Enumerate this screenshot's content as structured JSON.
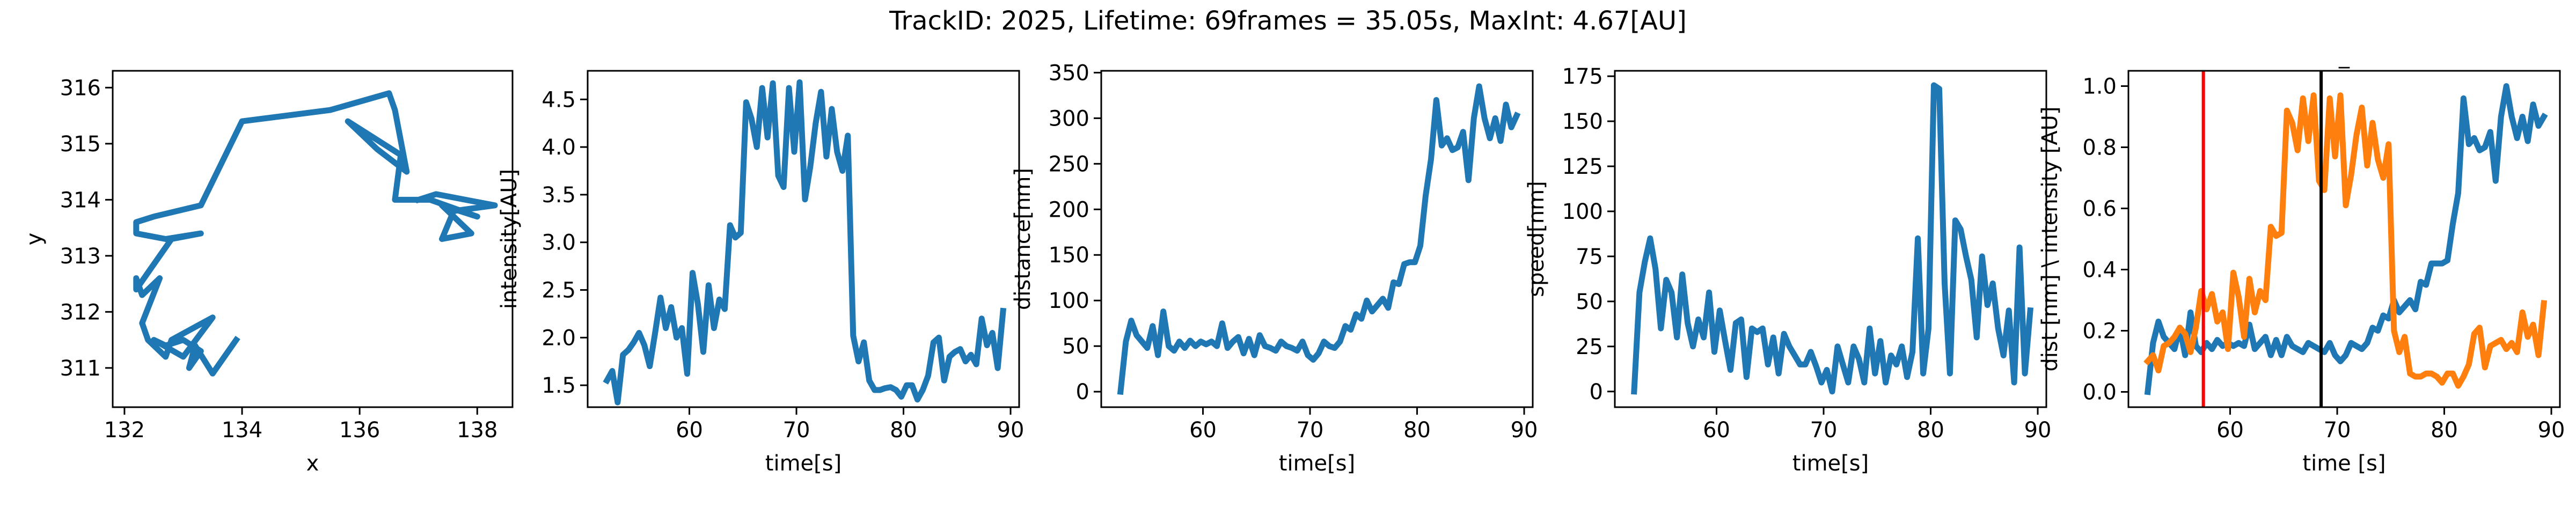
{
  "suptitle": "TrackID: 2025, Lifetime: 69frames = 35.05s, MaxInt: 4.67[AU]",
  "chart_data": [
    {
      "type": "line",
      "xlabel": "x",
      "ylabel": "y",
      "xlim": [
        131.8,
        138.6
      ],
      "ylim": [
        310.3,
        316.3
      ],
      "xticks": [
        132,
        134,
        136,
        138
      ],
      "xtick_labels": [
        "132",
        "134",
        "136",
        "138"
      ],
      "yticks": [
        311,
        312,
        313,
        314,
        315,
        316
      ],
      "ytick_labels": [
        "311",
        "312",
        "313",
        "314",
        "315",
        "316"
      ],
      "grid": false,
      "series": [
        {
          "color": "#1f77b4",
          "x": [
            133.9,
            133.5,
            133.2,
            133.1,
            133.3,
            133.0,
            132.7,
            132.5,
            133.0,
            133.5,
            132.8,
            132.7,
            132.4,
            132.3,
            132.6,
            132.3,
            132.2,
            132.2,
            132.4,
            132.8,
            133.3,
            132.7,
            132.2,
            132.2,
            132.5,
            133.3,
            134.0,
            135.5,
            136.5,
            136.6,
            136.8,
            136.3,
            135.8,
            136.7,
            136.6,
            137.2,
            138.0,
            137.4,
            137.9,
            137.4,
            137.6,
            138.3,
            137.3,
            137.0
          ],
          "y": [
            311.5,
            310.9,
            311.4,
            311.0,
            311.3,
            311.5,
            311.4,
            311.5,
            311.2,
            311.9,
            311.5,
            311.2,
            311.5,
            311.8,
            312.6,
            312.3,
            312.6,
            312.4,
            312.7,
            313.3,
            313.4,
            313.3,
            313.4,
            313.6,
            313.7,
            313.9,
            315.4,
            315.6,
            315.9,
            315.6,
            314.5,
            314.9,
            315.4,
            314.8,
            314.0,
            314.0,
            313.7,
            313.9,
            313.4,
            313.3,
            313.8,
            313.9,
            314.1,
            314.0
          ]
        }
      ]
    },
    {
      "type": "line",
      "xlabel": "time[s]",
      "ylabel": "intensity[AU]",
      "xlim": [
        50.5,
        90.8
      ],
      "ylim": [
        1.27,
        4.8
      ],
      "xticks": [
        60,
        70,
        80,
        90
      ],
      "xtick_labels": [
        "60",
        "70",
        "80",
        "90"
      ],
      "yticks": [
        1.5,
        2.0,
        2.5,
        3.0,
        3.5,
        4.0,
        4.5
      ],
      "ytick_labels": [
        "1.5",
        "2.0",
        "2.5",
        "3.0",
        "3.5",
        "4.0",
        "4.5"
      ],
      "grid": false,
      "series": [
        {
          "color": "#1f77b4",
          "x": [
            52.3,
            52.8,
            53.3,
            53.8,
            54.3,
            54.8,
            55.3,
            55.8,
            56.3,
            56.8,
            57.3,
            57.8,
            58.3,
            58.8,
            59.3,
            59.8,
            60.3,
            60.8,
            61.3,
            61.8,
            62.3,
            62.8,
            63.3,
            63.8,
            64.3,
            64.8,
            65.3,
            65.8,
            66.3,
            66.8,
            67.3,
            67.8,
            68.3,
            68.8,
            69.3,
            69.8,
            70.3,
            70.8,
            71.3,
            71.8,
            72.3,
            72.8,
            73.3,
            73.8,
            74.3,
            74.8,
            75.3,
            75.8,
            76.3,
            76.8,
            77.3,
            77.8,
            78.3,
            78.8,
            79.3,
            79.8,
            80.3,
            80.8,
            81.3,
            81.8,
            82.3,
            82.8,
            83.3,
            83.8,
            84.3,
            84.8,
            85.3,
            85.8,
            86.3,
            86.8,
            87.3,
            87.8,
            88.3,
            88.8,
            89.3
          ],
          "values": [
            1.55,
            1.65,
            1.32,
            1.82,
            1.87,
            1.95,
            2.05,
            1.92,
            1.7,
            2.05,
            2.42,
            2.1,
            2.32,
            2.0,
            2.1,
            1.62,
            2.68,
            2.35,
            1.85,
            2.55,
            2.1,
            2.4,
            2.3,
            3.18,
            3.05,
            3.1,
            4.47,
            4.3,
            4.0,
            4.62,
            4.1,
            4.67,
            3.7,
            3.58,
            4.62,
            3.95,
            4.68,
            3.45,
            3.8,
            4.25,
            4.58,
            3.9,
            4.4,
            3.95,
            3.75,
            4.12,
            2.02,
            1.75,
            1.95,
            1.55,
            1.45,
            1.45,
            1.47,
            1.48,
            1.45,
            1.38,
            1.5,
            1.5,
            1.35,
            1.45,
            1.6,
            1.95,
            2.0,
            1.55,
            1.8,
            1.85,
            1.88,
            1.75,
            1.82,
            1.72,
            2.2,
            1.92,
            2.05,
            1.68,
            2.28
          ]
        }
      ]
    },
    {
      "type": "line",
      "xlabel": "time[s]",
      "ylabel": "distance[nm]",
      "xlim": [
        50.5,
        90.8
      ],
      "ylim": [
        -17,
        352
      ],
      "xticks": [
        60,
        70,
        80,
        90
      ],
      "xtick_labels": [
        "60",
        "70",
        "80",
        "90"
      ],
      "yticks": [
        0,
        50,
        100,
        150,
        200,
        250,
        300,
        350
      ],
      "ytick_labels": [
        "0",
        "50",
        "100",
        "150",
        "200",
        "250",
        "300",
        "350"
      ],
      "grid": false,
      "series": [
        {
          "color": "#1f77b4",
          "x": [
            52.3,
            52.8,
            53.3,
            53.8,
            54.3,
            54.8,
            55.3,
            55.8,
            56.3,
            56.8,
            57.3,
            57.8,
            58.3,
            58.8,
            59.3,
            59.8,
            60.3,
            60.8,
            61.3,
            61.8,
            62.3,
            62.8,
            63.3,
            63.8,
            64.3,
            64.8,
            65.3,
            65.8,
            66.3,
            66.8,
            67.3,
            67.8,
            68.3,
            68.8,
            69.3,
            69.8,
            70.3,
            70.8,
            71.3,
            71.8,
            72.3,
            72.8,
            73.3,
            73.8,
            74.3,
            74.8,
            75.3,
            75.8,
            76.3,
            76.8,
            77.3,
            77.8,
            78.3,
            78.8,
            79.3,
            79.8,
            80.3,
            80.8,
            81.3,
            81.8,
            82.3,
            82.8,
            83.3,
            83.8,
            84.3,
            84.8,
            85.3,
            85.8,
            86.3,
            86.8,
            87.3,
            87.8,
            88.3,
            88.8,
            89.3
          ],
          "values": [
            0,
            55,
            78,
            62,
            55,
            48,
            72,
            40,
            88,
            50,
            45,
            55,
            48,
            56,
            50,
            55,
            52,
            55,
            50,
            75,
            48,
            55,
            60,
            42,
            58,
            40,
            62,
            50,
            48,
            45,
            55,
            50,
            48,
            45,
            55,
            40,
            35,
            42,
            55,
            50,
            48,
            55,
            72,
            68,
            85,
            80,
            100,
            88,
            95,
            102,
            92,
            120,
            118,
            140,
            142,
            142,
            160,
            215,
            255,
            320,
            270,
            278,
            265,
            268,
            285,
            232,
            300,
            335,
            300,
            278,
            300,
            275,
            315,
            290,
            303
          ]
        }
      ]
    },
    {
      "type": "line",
      "xlabel": "time[s]",
      "ylabel": "speed[nm]",
      "xlim": [
        50.5,
        90.8
      ],
      "ylim": [
        -8.7,
        178
      ],
      "xticks": [
        60,
        70,
        80,
        90
      ],
      "xtick_labels": [
        "60",
        "70",
        "80",
        "90"
      ],
      "yticks": [
        0,
        25,
        50,
        75,
        100,
        125,
        150,
        175
      ],
      "ytick_labels": [
        "0",
        "25",
        "50",
        "75",
        "100",
        "125",
        "150",
        "175"
      ],
      "grid": false,
      "series": [
        {
          "color": "#1f77b4",
          "x": [
            52.3,
            52.8,
            53.3,
            53.8,
            54.3,
            54.8,
            55.3,
            55.8,
            56.3,
            56.8,
            57.3,
            57.8,
            58.3,
            58.8,
            59.3,
            59.8,
            60.3,
            60.8,
            61.3,
            61.8,
            62.3,
            62.8,
            63.3,
            63.8,
            64.3,
            64.8,
            65.3,
            65.8,
            66.3,
            66.8,
            67.3,
            67.8,
            68.3,
            68.8,
            69.3,
            69.8,
            70.3,
            70.8,
            71.3,
            71.8,
            72.3,
            72.8,
            73.3,
            73.8,
            74.3,
            74.8,
            75.3,
            75.8,
            76.3,
            76.8,
            77.3,
            77.8,
            78.3,
            78.8,
            79.3,
            79.8,
            80.3,
            80.8,
            81.3,
            81.8,
            82.3,
            82.8,
            83.3,
            83.8,
            84.3,
            84.8,
            85.3,
            85.8,
            86.3,
            86.8,
            87.3,
            87.8,
            88.3,
            88.8,
            89.3
          ],
          "values": [
            0,
            55,
            72,
            85,
            68,
            35,
            62,
            55,
            30,
            65,
            38,
            25,
            40,
            30,
            55,
            22,
            45,
            28,
            12,
            38,
            40,
            8,
            35,
            33,
            35,
            15,
            30,
            10,
            32,
            25,
            20,
            15,
            15,
            22,
            14,
            5,
            12,
            0,
            25,
            15,
            5,
            25,
            18,
            5,
            35,
            10,
            28,
            5,
            20,
            15,
            25,
            8,
            22,
            85,
            10,
            35,
            170,
            168,
            60,
            10,
            95,
            90,
            75,
            62,
            30,
            75,
            48,
            60,
            35,
            20,
            45,
            5,
            80,
            10,
            45
          ]
        }
      ]
    },
    {
      "type": "line",
      "xlabel": "time [s]",
      "ylabel": "dist [nm] \\ intensity [AU]",
      "title": "_",
      "xlim": [
        50.5,
        90.8
      ],
      "ylim": [
        -0.05,
        1.05
      ],
      "xticks": [
        60,
        70,
        80,
        90
      ],
      "xtick_labels": [
        "60",
        "70",
        "80",
        "90"
      ],
      "yticks": [
        0.0,
        0.2,
        0.4,
        0.6,
        0.8,
        1.0
      ],
      "ytick_labels": [
        "0.0",
        "0.2",
        "0.4",
        "0.6",
        "0.8",
        "1.0"
      ],
      "grid": false,
      "vlines": [
        {
          "x": 57.5,
          "color": "#ff0000"
        },
        {
          "x": 68.5,
          "color": "#000000"
        }
      ],
      "series": [
        {
          "color": "#1f77b4",
          "x": [
            52.3,
            52.8,
            53.3,
            53.8,
            54.3,
            54.8,
            55.3,
            55.8,
            56.3,
            56.8,
            57.3,
            57.8,
            58.3,
            58.8,
            59.3,
            59.8,
            60.3,
            60.8,
            61.3,
            61.8,
            62.3,
            62.8,
            63.3,
            63.8,
            64.3,
            64.8,
            65.3,
            65.8,
            66.3,
            66.8,
            67.3,
            67.8,
            68.3,
            68.8,
            69.3,
            69.8,
            70.3,
            70.8,
            71.3,
            71.8,
            72.3,
            72.8,
            73.3,
            73.8,
            74.3,
            74.8,
            75.3,
            75.8,
            76.3,
            76.8,
            77.3,
            77.8,
            78.3,
            78.8,
            79.3,
            79.8,
            80.3,
            80.8,
            81.3,
            81.8,
            82.3,
            82.8,
            83.3,
            83.8,
            84.3,
            84.8,
            85.3,
            85.8,
            86.3,
            86.8,
            87.3,
            87.8,
            88.3,
            88.8,
            89.3
          ],
          "values": [
            0.0,
            0.16,
            0.23,
            0.18,
            0.16,
            0.14,
            0.21,
            0.12,
            0.26,
            0.15,
            0.13,
            0.16,
            0.14,
            0.17,
            0.15,
            0.16,
            0.15,
            0.16,
            0.15,
            0.22,
            0.14,
            0.16,
            0.18,
            0.12,
            0.17,
            0.12,
            0.18,
            0.15,
            0.14,
            0.13,
            0.16,
            0.15,
            0.14,
            0.13,
            0.16,
            0.12,
            0.1,
            0.12,
            0.16,
            0.15,
            0.14,
            0.16,
            0.21,
            0.2,
            0.25,
            0.24,
            0.3,
            0.26,
            0.28,
            0.3,
            0.27,
            0.36,
            0.35,
            0.42,
            0.42,
            0.42,
            0.43,
            0.55,
            0.65,
            0.96,
            0.81,
            0.83,
            0.79,
            0.8,
            0.85,
            0.69,
            0.9,
            1.0,
            0.9,
            0.83,
            0.9,
            0.82,
            0.94,
            0.87,
            0.9
          ]
        },
        {
          "color": "#ff7f0e",
          "x": [
            52.3,
            52.8,
            53.3,
            53.8,
            54.3,
            54.8,
            55.3,
            55.8,
            56.3,
            56.8,
            57.3,
            57.8,
            58.3,
            58.8,
            59.3,
            59.8,
            60.3,
            60.8,
            61.3,
            61.8,
            62.3,
            62.8,
            63.3,
            63.8,
            64.3,
            64.8,
            65.3,
            65.8,
            66.3,
            66.8,
            67.3,
            67.8,
            68.3,
            68.8,
            69.3,
            69.8,
            70.3,
            70.8,
            71.3,
            71.8,
            72.3,
            72.8,
            73.3,
            73.8,
            74.3,
            74.8,
            75.3,
            75.8,
            76.3,
            76.8,
            77.3,
            77.8,
            78.3,
            78.8,
            79.3,
            79.8,
            80.3,
            80.8,
            81.3,
            81.8,
            82.3,
            82.8,
            83.3,
            83.8,
            84.3,
            84.8,
            85.3,
            85.8,
            86.3,
            86.8,
            87.3,
            87.8,
            88.3,
            88.8,
            89.3
          ],
          "values": [
            0.1,
            0.12,
            0.07,
            0.15,
            0.16,
            0.18,
            0.21,
            0.19,
            0.13,
            0.21,
            0.33,
            0.27,
            0.32,
            0.23,
            0.26,
            0.14,
            0.39,
            0.31,
            0.18,
            0.37,
            0.26,
            0.33,
            0.3,
            0.54,
            0.51,
            0.52,
            0.92,
            0.88,
            0.79,
            0.96,
            0.82,
            0.97,
            0.69,
            0.66,
            0.96,
            0.77,
            0.97,
            0.61,
            0.71,
            0.84,
            0.93,
            0.74,
            0.88,
            0.76,
            0.7,
            0.81,
            0.2,
            0.13,
            0.18,
            0.06,
            0.05,
            0.05,
            0.06,
            0.06,
            0.05,
            0.03,
            0.06,
            0.06,
            0.02,
            0.05,
            0.09,
            0.19,
            0.21,
            0.08,
            0.15,
            0.16,
            0.17,
            0.14,
            0.16,
            0.13,
            0.26,
            0.18,
            0.22,
            0.12,
            0.29
          ]
        }
      ]
    }
  ]
}
